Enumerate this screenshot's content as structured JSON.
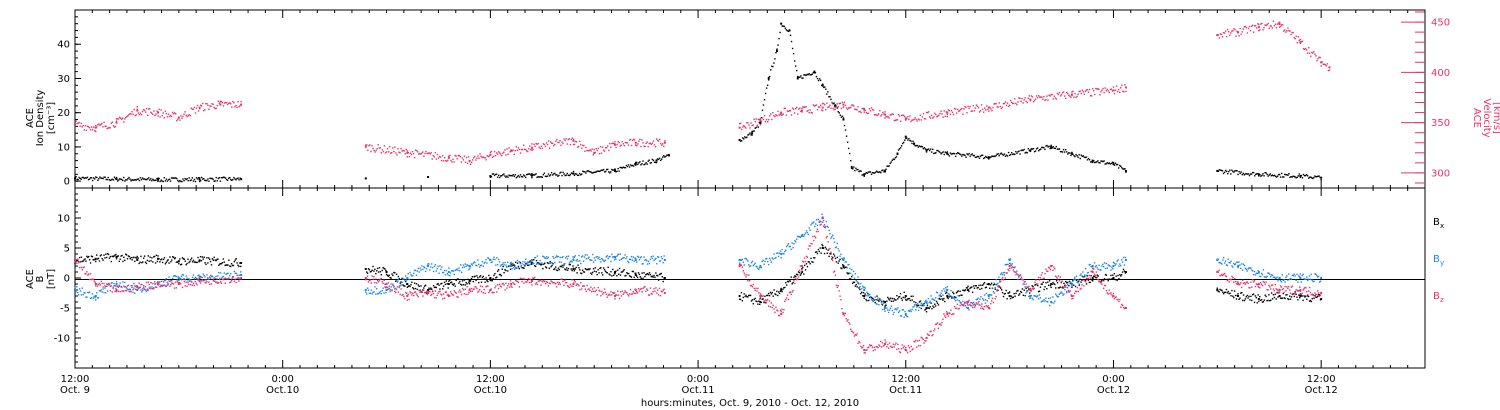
{
  "colors": {
    "density": "#000000",
    "velocity": "#e8336b",
    "bx": "#000000",
    "by": "#1e88e5",
    "bz": "#e8336b",
    "axis": "#000000"
  },
  "x_axis": {
    "label": "hours:minutes, Oct.  9, 2010 - Oct. 12, 2010",
    "ticks": [
      {
        "day": 9.5,
        "time": "12:00",
        "date": "Oct. 9"
      },
      {
        "day": 10.0,
        "time": "0:00",
        "date": "Oct.10"
      },
      {
        "day": 10.5,
        "time": "12:00",
        "date": "Oct.10"
      },
      {
        "day": 11.0,
        "time": "0:00",
        "date": "Oct.11"
      },
      {
        "day": 11.5,
        "time": "12:00",
        "date": "Oct.11"
      },
      {
        "day": 12.0,
        "time": "0:00",
        "date": "Oct.12"
      },
      {
        "day": 12.5,
        "time": "12:00",
        "date": "Oct.12"
      }
    ]
  },
  "panels": {
    "top": {
      "left_label": [
        "ACE",
        "Ion Density",
        "[cm⁻³]"
      ],
      "right_label": [
        "ACE",
        "Velocity",
        "[km/s]"
      ],
      "left_ticks": [
        0,
        10,
        20,
        30,
        40
      ],
      "right_ticks": [
        300,
        350,
        400,
        450
      ]
    },
    "bottom": {
      "left_label": [
        "ACE",
        "B",
        "[nT]"
      ],
      "left_ticks": [
        -10,
        -5,
        0,
        5,
        10
      ],
      "legend": [
        {
          "key": "bx",
          "text": "B",
          "sub": "x"
        },
        {
          "key": "by",
          "text": "B",
          "sub": "y"
        },
        {
          "key": "bz",
          "text": "B",
          "sub": "z"
        }
      ]
    }
  },
  "chart_data": [
    {
      "type": "scatter",
      "panel": "top",
      "xunit": "day of October 2010",
      "xlim": [
        9.5,
        12.75
      ],
      "ylim": [
        -2,
        50
      ],
      "y2lim": [
        285,
        462
      ],
      "series": [
        {
          "key": "density",
          "axis": "left",
          "ylabel": "Ion Density",
          "points": [
            [
              9.5,
              0.8
            ],
            [
              9.6,
              0.6
            ],
            [
              9.7,
              0.4
            ],
            [
              9.8,
              0.5
            ],
            [
              9.9,
              0.6
            ],
            [
              10.2,
              0.8
            ],
            [
              10.35,
              1.2
            ],
            [
              10.5,
              1.5
            ],
            [
              10.6,
              1.6
            ],
            [
              10.7,
              2.2
            ],
            [
              10.8,
              3.0
            ],
            [
              10.85,
              5
            ],
            [
              10.9,
              6
            ],
            [
              10.93,
              7.5
            ],
            [
              11.1,
              12
            ],
            [
              11.13,
              14
            ],
            [
              11.15,
              17
            ],
            [
              11.17,
              30
            ],
            [
              11.19,
              38
            ],
            [
              11.2,
              46
            ],
            [
              11.22,
              44
            ],
            [
              11.24,
              30
            ],
            [
              11.28,
              32
            ],
            [
              11.3,
              28
            ],
            [
              11.33,
              22
            ],
            [
              11.35,
              18
            ],
            [
              11.37,
              4
            ],
            [
              11.4,
              2
            ],
            [
              11.45,
              3
            ],
            [
              11.48,
              8
            ],
            [
              11.5,
              13
            ],
            [
              11.52,
              11
            ],
            [
              11.55,
              9
            ],
            [
              11.6,
              8
            ],
            [
              11.7,
              7
            ],
            [
              11.8,
              9
            ],
            [
              11.85,
              10
            ],
            [
              11.9,
              8
            ],
            [
              11.95,
              6
            ],
            [
              12.0,
              5
            ],
            [
              12.03,
              3
            ],
            [
              12.25,
              3
            ],
            [
              12.35,
              2
            ],
            [
              12.45,
              1.5
            ],
            [
              12.5,
              1.0
            ]
          ]
        },
        {
          "key": "velocity",
          "axis": "right",
          "ylabel": "Velocity",
          "points": [
            [
              9.5,
              348
            ],
            [
              9.55,
              345
            ],
            [
              9.6,
              350
            ],
            [
              9.65,
              362
            ],
            [
              9.7,
              360
            ],
            [
              9.75,
              355
            ],
            [
              9.8,
              365
            ],
            [
              9.85,
              368
            ],
            [
              9.9,
              368
            ],
            [
              10.2,
              326
            ],
            [
              10.3,
              320
            ],
            [
              10.4,
              315
            ],
            [
              10.45,
              312
            ],
            [
              10.5,
              318
            ],
            [
              10.55,
              322
            ],
            [
              10.6,
              325
            ],
            [
              10.7,
              332
            ],
            [
              10.75,
              320
            ],
            [
              10.8,
              328
            ],
            [
              10.85,
              330
            ],
            [
              10.92,
              330
            ],
            [
              11.1,
              345
            ],
            [
              11.15,
              352
            ],
            [
              11.2,
              360
            ],
            [
              11.25,
              362
            ],
            [
              11.3,
              365
            ],
            [
              11.35,
              368
            ],
            [
              11.4,
              363
            ],
            [
              11.45,
              358
            ],
            [
              11.5,
              353
            ],
            [
              11.6,
              360
            ],
            [
              11.7,
              365
            ],
            [
              11.8,
              373
            ],
            [
              11.9,
              378
            ],
            [
              12.0,
              382
            ],
            [
              12.03,
              385
            ],
            [
              12.25,
              437
            ],
            [
              12.3,
              440
            ],
            [
              12.35,
              445
            ],
            [
              12.4,
              448
            ],
            [
              12.45,
              430
            ],
            [
              12.5,
              410
            ],
            [
              12.52,
              405
            ]
          ]
        }
      ]
    },
    {
      "type": "scatter",
      "panel": "bottom",
      "xunit": "day of October 2010",
      "xlim": [
        9.5,
        12.75
      ],
      "ylim": [
        -15,
        15
      ],
      "series": [
        {
          "key": "bx",
          "name": "B x",
          "points": [
            [
              9.5,
              3
            ],
            [
              9.55,
              3.2
            ],
            [
              9.6,
              3.5
            ],
            [
              9.65,
              3.0
            ],
            [
              9.7,
              3.2
            ],
            [
              9.75,
              2.8
            ],
            [
              9.8,
              2.9
            ],
            [
              9.9,
              2.5
            ],
            [
              10.2,
              1.5
            ],
            [
              10.25,
              1.0
            ],
            [
              10.3,
              -1
            ],
            [
              10.35,
              -2
            ],
            [
              10.4,
              -1
            ],
            [
              10.45,
              -0.5
            ],
            [
              10.5,
              0
            ],
            [
              10.55,
              2
            ],
            [
              10.6,
              2.5
            ],
            [
              10.7,
              1.5
            ],
            [
              10.8,
              1
            ],
            [
              10.85,
              0.5
            ],
            [
              10.92,
              0
            ],
            [
              11.1,
              -3
            ],
            [
              11.15,
              -4
            ],
            [
              11.2,
              -2
            ],
            [
              11.25,
              1
            ],
            [
              11.3,
              5
            ],
            [
              11.35,
              2
            ],
            [
              11.4,
              -3
            ],
            [
              11.45,
              -4
            ],
            [
              11.5,
              -3
            ],
            [
              11.55,
              -5
            ],
            [
              11.6,
              -3
            ],
            [
              11.65,
              -2
            ],
            [
              11.7,
              -1
            ],
            [
              11.75,
              -3
            ],
            [
              11.8,
              -2
            ],
            [
              11.85,
              -1
            ],
            [
              11.9,
              -1
            ],
            [
              11.95,
              0
            ],
            [
              12.0,
              0
            ],
            [
              12.03,
              1
            ],
            [
              12.25,
              -2
            ],
            [
              12.3,
              -3
            ],
            [
              12.35,
              -3.5
            ],
            [
              12.4,
              -3
            ],
            [
              12.45,
              -3
            ],
            [
              12.5,
              -3.5
            ]
          ]
        },
        {
          "key": "by",
          "name": "B y",
          "points": [
            [
              9.5,
              -2
            ],
            [
              9.55,
              -3
            ],
            [
              9.6,
              -1
            ],
            [
              9.65,
              -2
            ],
            [
              9.7,
              -1
            ],
            [
              9.75,
              0
            ],
            [
              9.8,
              0
            ],
            [
              9.9,
              0.5
            ],
            [
              10.2,
              -2
            ],
            [
              10.25,
              -2
            ],
            [
              10.3,
              0
            ],
            [
              10.35,
              2
            ],
            [
              10.4,
              1
            ],
            [
              10.45,
              2
            ],
            [
              10.5,
              3
            ],
            [
              10.55,
              2
            ],
            [
              10.6,
              3
            ],
            [
              10.7,
              3
            ],
            [
              10.8,
              3.5
            ],
            [
              10.85,
              3
            ],
            [
              10.92,
              3
            ],
            [
              11.1,
              3
            ],
            [
              11.15,
              2
            ],
            [
              11.2,
              4
            ],
            [
              11.25,
              7
            ],
            [
              11.3,
              10
            ],
            [
              11.35,
              3
            ],
            [
              11.4,
              -2
            ],
            [
              11.45,
              -5
            ],
            [
              11.5,
              -6
            ],
            [
              11.55,
              -4
            ],
            [
              11.6,
              -2
            ],
            [
              11.65,
              -5
            ],
            [
              11.7,
              -3
            ],
            [
              11.75,
              3
            ],
            [
              11.8,
              -3
            ],
            [
              11.85,
              -4
            ],
            [
              11.9,
              -1
            ],
            [
              11.95,
              2
            ],
            [
              12.0,
              2
            ],
            [
              12.03,
              3
            ],
            [
              12.25,
              3
            ],
            [
              12.3,
              2
            ],
            [
              12.35,
              1
            ],
            [
              12.4,
              0
            ],
            [
              12.45,
              0
            ],
            [
              12.5,
              0
            ]
          ]
        },
        {
          "key": "bz",
          "name": "B z",
          "points": [
            [
              9.5,
              3
            ],
            [
              9.55,
              -1
            ],
            [
              9.6,
              -2
            ],
            [
              9.65,
              -1.5
            ],
            [
              9.7,
              -1
            ],
            [
              9.75,
              -1
            ],
            [
              9.8,
              -0.5
            ],
            [
              9.9,
              0
            ],
            [
              10.2,
              0
            ],
            [
              10.25,
              -1
            ],
            [
              10.3,
              -3
            ],
            [
              10.35,
              -2.5
            ],
            [
              10.4,
              -3
            ],
            [
              10.45,
              -2
            ],
            [
              10.5,
              -2
            ],
            [
              10.55,
              -1
            ],
            [
              10.6,
              -0.5
            ],
            [
              10.7,
              -1
            ],
            [
              10.8,
              -3
            ],
            [
              10.85,
              -2
            ],
            [
              10.92,
              -2.5
            ],
            [
              11.1,
              2
            ],
            [
              11.15,
              -3
            ],
            [
              11.2,
              -6
            ],
            [
              11.25,
              2
            ],
            [
              11.3,
              10
            ],
            [
              11.35,
              -6
            ],
            [
              11.4,
              -12
            ],
            [
              11.45,
              -11
            ],
            [
              11.5,
              -12
            ],
            [
              11.55,
              -10
            ],
            [
              11.6,
              -6
            ],
            [
              11.65,
              -4
            ],
            [
              11.7,
              -5
            ],
            [
              11.75,
              2
            ],
            [
              11.8,
              -2
            ],
            [
              11.85,
              2
            ],
            [
              11.9,
              -3
            ],
            [
              11.95,
              1
            ],
            [
              12.0,
              -3
            ],
            [
              12.03,
              -5
            ],
            [
              12.25,
              1
            ],
            [
              12.3,
              -1
            ],
            [
              12.35,
              -1
            ],
            [
              12.4,
              -2
            ],
            [
              12.45,
              -2
            ],
            [
              12.5,
              -2.5
            ]
          ]
        }
      ]
    }
  ]
}
